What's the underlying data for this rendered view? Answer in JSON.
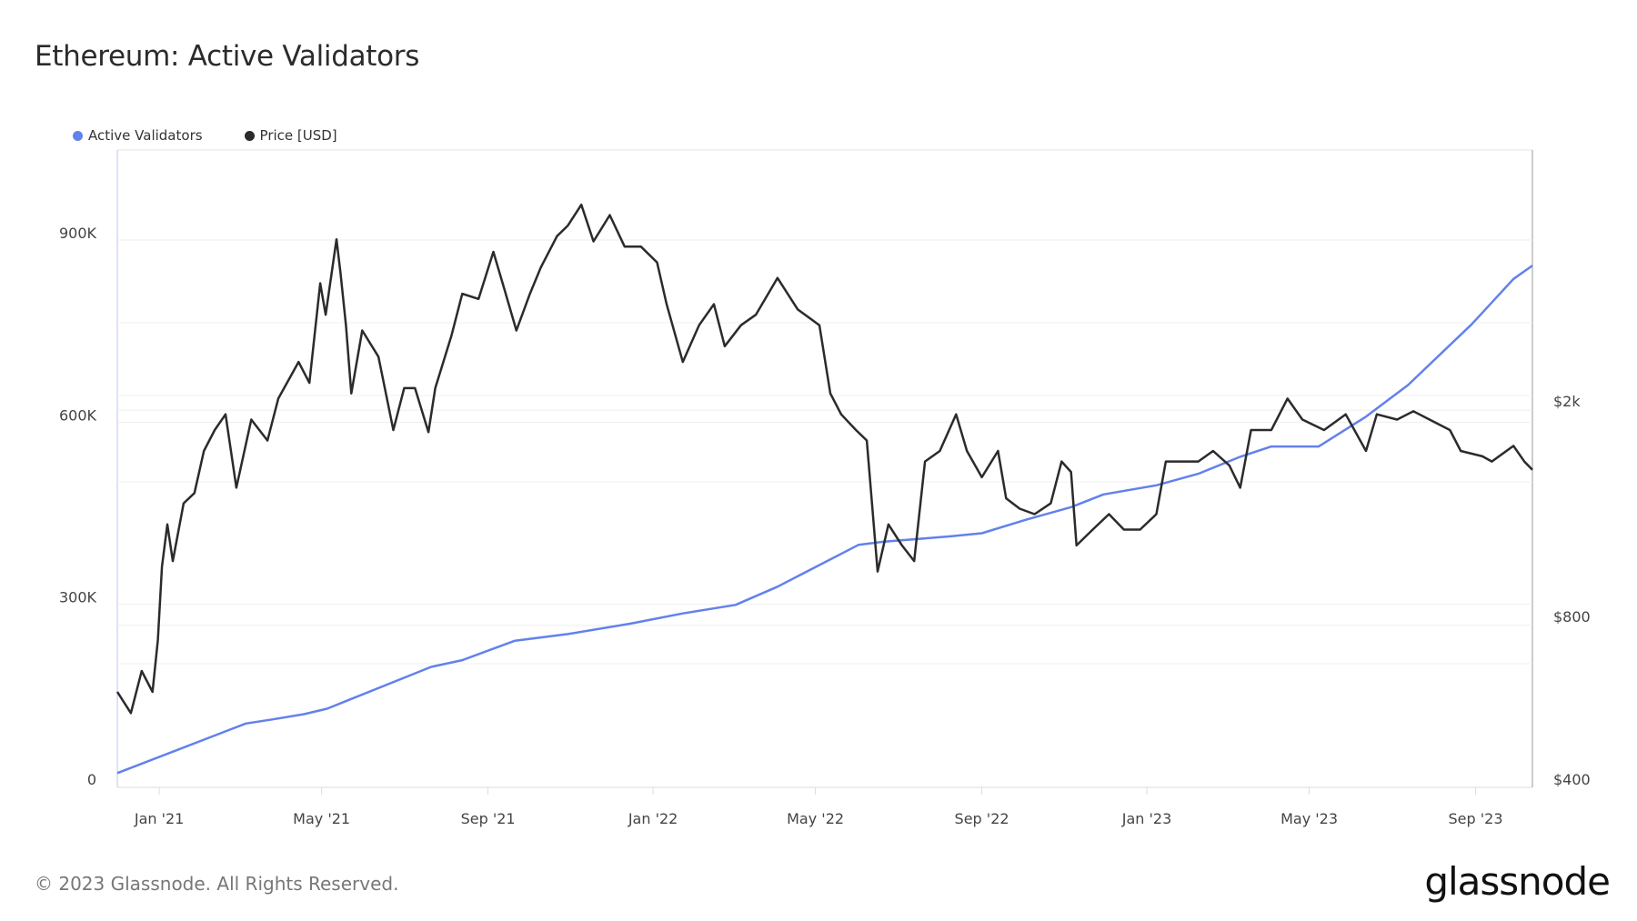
{
  "title": "Ethereum: Active Validators",
  "footer": "© 2023 Glassnode. All Rights Reserved.",
  "logo": "glassnode",
  "chart_data": {
    "type": "line",
    "title": "Ethereum: Active Validators",
    "legend_placement": "top-left",
    "grid": true,
    "x_range": [
      "2020-12-01",
      "2023-10-13"
    ],
    "x_ticks": [
      {
        "date": "2021-01-01",
        "label": "Jan '21"
      },
      {
        "date": "2021-05-01",
        "label": "May '21"
      },
      {
        "date": "2021-09-01",
        "label": "Sep '21"
      },
      {
        "date": "2022-01-01",
        "label": "Jan '22"
      },
      {
        "date": "2022-05-01",
        "label": "May '22"
      },
      {
        "date": "2022-09-01",
        "label": "Sep '22"
      },
      {
        "date": "2023-01-01",
        "label": "Jan '23"
      },
      {
        "date": "2023-05-01",
        "label": "May '23"
      },
      {
        "date": "2023-09-01",
        "label": "Sep '23"
      }
    ],
    "y_left": {
      "scale": "linear",
      "range": [
        0,
        1040000
      ],
      "ticks": [
        {
          "value": 0,
          "label": "0"
        },
        {
          "value": 300000,
          "label": "300K"
        },
        {
          "value": 600000,
          "label": "600K"
        },
        {
          "value": 900000,
          "label": "900K"
        }
      ]
    },
    "y_right": {
      "scale": "log",
      "range": [
        400,
        5000
      ],
      "ticks": [
        {
          "value": 400,
          "label": "$400"
        },
        {
          "value": 800,
          "label": "$800"
        },
        {
          "value": 2000,
          "label": "$2k"
        }
      ]
    },
    "series": [
      {
        "name": "Active Validators",
        "axis": "left",
        "color": "#6281ec",
        "points": [
          [
            "2020-12-01",
            10000
          ],
          [
            "2021-03-06",
            91700
          ],
          [
            "2021-03-26",
            98600
          ],
          [
            "2021-04-18",
            107000
          ],
          [
            "2021-05-05",
            116000
          ],
          [
            "2021-07-21",
            185000
          ],
          [
            "2021-08-13",
            196000
          ],
          [
            "2021-09-21",
            228000
          ],
          [
            "2021-10-30",
            239000
          ],
          [
            "2021-12-15",
            256000
          ],
          [
            "2022-01-23",
            273000
          ],
          [
            "2022-03-03",
            287000
          ],
          [
            "2022-04-03",
            317000
          ],
          [
            "2022-06-02",
            386000
          ],
          [
            "2022-06-20",
            391000
          ],
          [
            "2022-08-09",
            400000
          ],
          [
            "2022-09-01",
            405000
          ],
          [
            "2022-10-03",
            427000
          ],
          [
            "2022-11-06",
            448000
          ],
          [
            "2022-11-30",
            469000
          ],
          [
            "2023-01-08",
            484000
          ],
          [
            "2023-02-08",
            503000
          ],
          [
            "2023-03-11",
            531000
          ],
          [
            "2023-04-03",
            548000
          ],
          [
            "2023-05-08",
            548000
          ],
          [
            "2023-06-12",
            597000
          ],
          [
            "2023-07-13",
            649000
          ],
          [
            "2023-08-29",
            749000
          ],
          [
            "2023-09-29",
            824000
          ],
          [
            "2023-10-13",
            846000
          ]
        ]
      },
      {
        "name": "Price [USD]",
        "axis": "right",
        "color": "#2b2b2b",
        "points": [
          [
            "2020-12-01",
            580
          ],
          [
            "2020-12-11",
            530
          ],
          [
            "2020-12-19",
            634
          ],
          [
            "2020-12-27",
            580
          ],
          [
            "2020-12-31",
            724
          ],
          [
            "2021-01-03",
            989
          ],
          [
            "2021-01-07",
            1183
          ],
          [
            "2021-01-11",
            1012
          ],
          [
            "2021-01-19",
            1294
          ],
          [
            "2021-01-27",
            1352
          ],
          [
            "2021-02-03",
            1617
          ],
          [
            "2021-02-11",
            1768
          ],
          [
            "2021-02-19",
            1890
          ],
          [
            "2021-02-27",
            1383
          ],
          [
            "2021-03-10",
            1848
          ],
          [
            "2021-03-22",
            1691
          ],
          [
            "2021-03-30",
            2021
          ],
          [
            "2021-04-14",
            2362
          ],
          [
            "2021-04-22",
            2161
          ],
          [
            "2021-04-30",
            3302
          ],
          [
            "2021-05-04",
            2888
          ],
          [
            "2021-05-12",
            3982
          ],
          [
            "2021-05-15",
            3452
          ],
          [
            "2021-05-19",
            2762
          ],
          [
            "2021-05-23",
            2066
          ],
          [
            "2021-05-31",
            2701
          ],
          [
            "2021-06-12",
            2416
          ],
          [
            "2021-06-23",
            1768
          ],
          [
            "2021-07-01",
            2113
          ],
          [
            "2021-07-09",
            2113
          ],
          [
            "2021-07-19",
            1752
          ],
          [
            "2021-07-24",
            2113
          ],
          [
            "2021-08-05",
            2642
          ],
          [
            "2021-08-13",
            3158
          ],
          [
            "2021-08-25",
            3089
          ],
          [
            "2021-09-05",
            3775
          ],
          [
            "2021-09-13",
            3228
          ],
          [
            "2021-09-22",
            2701
          ],
          [
            "2021-10-02",
            3158
          ],
          [
            "2021-10-10",
            3530
          ],
          [
            "2021-10-22",
            4036
          ],
          [
            "2021-10-30",
            4221
          ],
          [
            "2021-11-09",
            4613
          ],
          [
            "2021-11-18",
            3946
          ],
          [
            "2021-11-30",
            4413
          ],
          [
            "2021-12-11",
            3860
          ],
          [
            "2021-12-23",
            3860
          ],
          [
            "2022-01-04",
            3609
          ],
          [
            "2022-01-11",
            3020
          ],
          [
            "2022-01-23",
            2362
          ],
          [
            "2022-02-04",
            2762
          ],
          [
            "2022-02-15",
            3020
          ],
          [
            "2022-02-23",
            2526
          ],
          [
            "2022-03-07",
            2762
          ],
          [
            "2022-03-18",
            2888
          ],
          [
            "2022-04-03",
            3377
          ],
          [
            "2022-04-18",
            2953
          ],
          [
            "2022-05-04",
            2762
          ],
          [
            "2022-05-12",
            2066
          ],
          [
            "2022-05-20",
            1890
          ],
          [
            "2022-05-31",
            1768
          ],
          [
            "2022-06-08",
            1691
          ],
          [
            "2022-06-16",
            968
          ],
          [
            "2022-06-24",
            1183
          ],
          [
            "2022-07-04",
            1082
          ],
          [
            "2022-07-13",
            1012
          ],
          [
            "2022-07-21",
            1546
          ],
          [
            "2022-08-01",
            1617
          ],
          [
            "2022-08-13",
            1890
          ],
          [
            "2022-08-21",
            1617
          ],
          [
            "2022-09-01",
            1446
          ],
          [
            "2022-09-13",
            1617
          ],
          [
            "2022-09-19",
            1322
          ],
          [
            "2022-09-29",
            1265
          ],
          [
            "2022-10-10",
            1236
          ],
          [
            "2022-10-22",
            1294
          ],
          [
            "2022-10-30",
            1546
          ],
          [
            "2022-11-06",
            1479
          ],
          [
            "2022-11-10",
            1082
          ],
          [
            "2022-11-22",
            1157
          ],
          [
            "2022-12-04",
            1236
          ],
          [
            "2022-12-15",
            1157
          ],
          [
            "2022-12-27",
            1157
          ],
          [
            "2023-01-08",
            1236
          ],
          [
            "2023-01-15",
            1546
          ],
          [
            "2023-01-27",
            1546
          ],
          [
            "2023-02-08",
            1546
          ],
          [
            "2023-02-19",
            1617
          ],
          [
            "2023-03-03",
            1520
          ],
          [
            "2023-03-11",
            1383
          ],
          [
            "2023-03-19",
            1768
          ],
          [
            "2023-04-03",
            1768
          ],
          [
            "2023-04-15",
            2021
          ],
          [
            "2023-04-26",
            1848
          ],
          [
            "2023-05-12",
            1768
          ],
          [
            "2023-05-28",
            1890
          ],
          [
            "2023-06-12",
            1617
          ],
          [
            "2023-06-20",
            1890
          ],
          [
            "2023-07-05",
            1848
          ],
          [
            "2023-07-17",
            1915
          ],
          [
            "2023-07-29",
            1848
          ],
          [
            "2023-08-13",
            1768
          ],
          [
            "2023-08-21",
            1617
          ],
          [
            "2023-09-06",
            1581
          ],
          [
            "2023-09-13",
            1546
          ],
          [
            "2023-09-29",
            1653
          ],
          [
            "2023-10-07",
            1546
          ],
          [
            "2023-10-13",
            1492
          ]
        ]
      }
    ]
  }
}
